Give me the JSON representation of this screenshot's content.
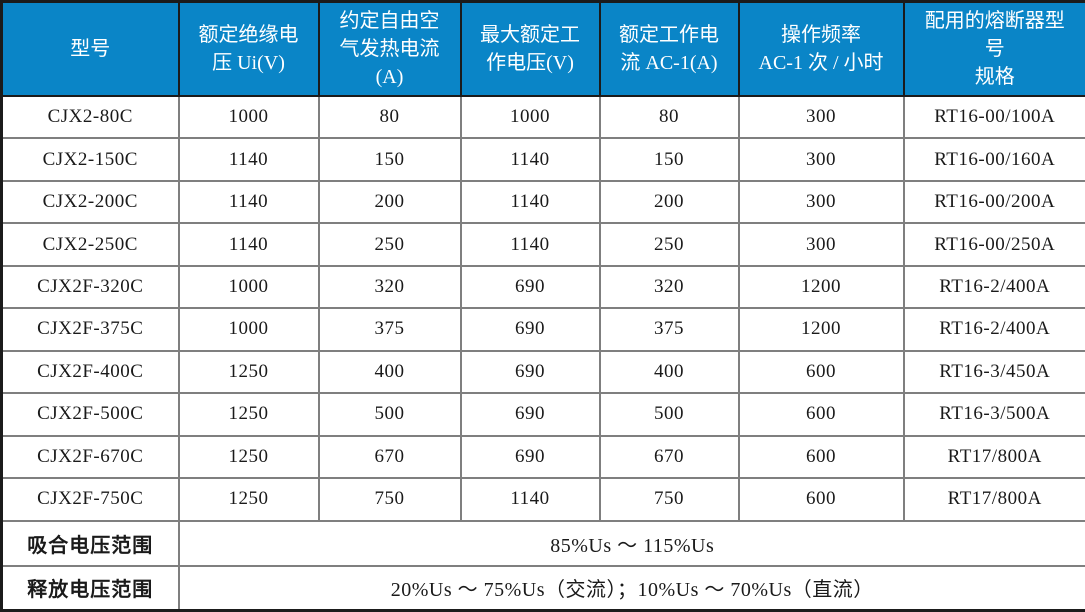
{
  "table": {
    "headers": [
      "型号",
      "额定绝缘电\n压 Ui(V)",
      "约定自由空\n气发热电流\n(A)",
      "最大额定工\n作电压(V)",
      "额定工作电\n流 AC-1(A)",
      "操作频率\nAC-1 次 / 小时",
      "配用的熔断器型号\n规格"
    ],
    "rows": [
      [
        "CJX2-80C",
        "1000",
        "80",
        "1000",
        "80",
        "300",
        "RT16-00/100A"
      ],
      [
        "CJX2-150C",
        "1140",
        "150",
        "1140",
        "150",
        "300",
        "RT16-00/160A"
      ],
      [
        "CJX2-200C",
        "1140",
        "200",
        "1140",
        "200",
        "300",
        "RT16-00/200A"
      ],
      [
        "CJX2-250C",
        "1140",
        "250",
        "1140",
        "250",
        "300",
        "RT16-00/250A"
      ],
      [
        "CJX2F-320C",
        "1000",
        "320",
        "690",
        "320",
        "1200",
        "RT16-2/400A"
      ],
      [
        "CJX2F-375C",
        "1000",
        "375",
        "690",
        "375",
        "1200",
        "RT16-2/400A"
      ],
      [
        "CJX2F-400C",
        "1250",
        "400",
        "690",
        "400",
        "600",
        "RT16-3/450A"
      ],
      [
        "CJX2F-500C",
        "1250",
        "500",
        "690",
        "500",
        "600",
        "RT16-3/500A"
      ],
      [
        "CJX2F-670C",
        "1250",
        "670",
        "690",
        "670",
        "600",
        "RT17/800A"
      ],
      [
        "CJX2F-750C",
        "1250",
        "750",
        "1140",
        "750",
        "600",
        "RT17/800A"
      ]
    ],
    "footer": [
      {
        "label": "吸合电压范围",
        "value": "85%Us ～ 115%Us"
      },
      {
        "label": "释放电压范围",
        "value": "20%Us ～ 75%Us（交流）；10%Us ～ 70%Us（直流）"
      }
    ]
  },
  "colors": {
    "header_bg": "#0a85c7",
    "header_text": "#ffffff",
    "grid_border": "#7f7f7f",
    "outer_border": "#1b1b1b",
    "body_text": "#1a1a1a"
  }
}
